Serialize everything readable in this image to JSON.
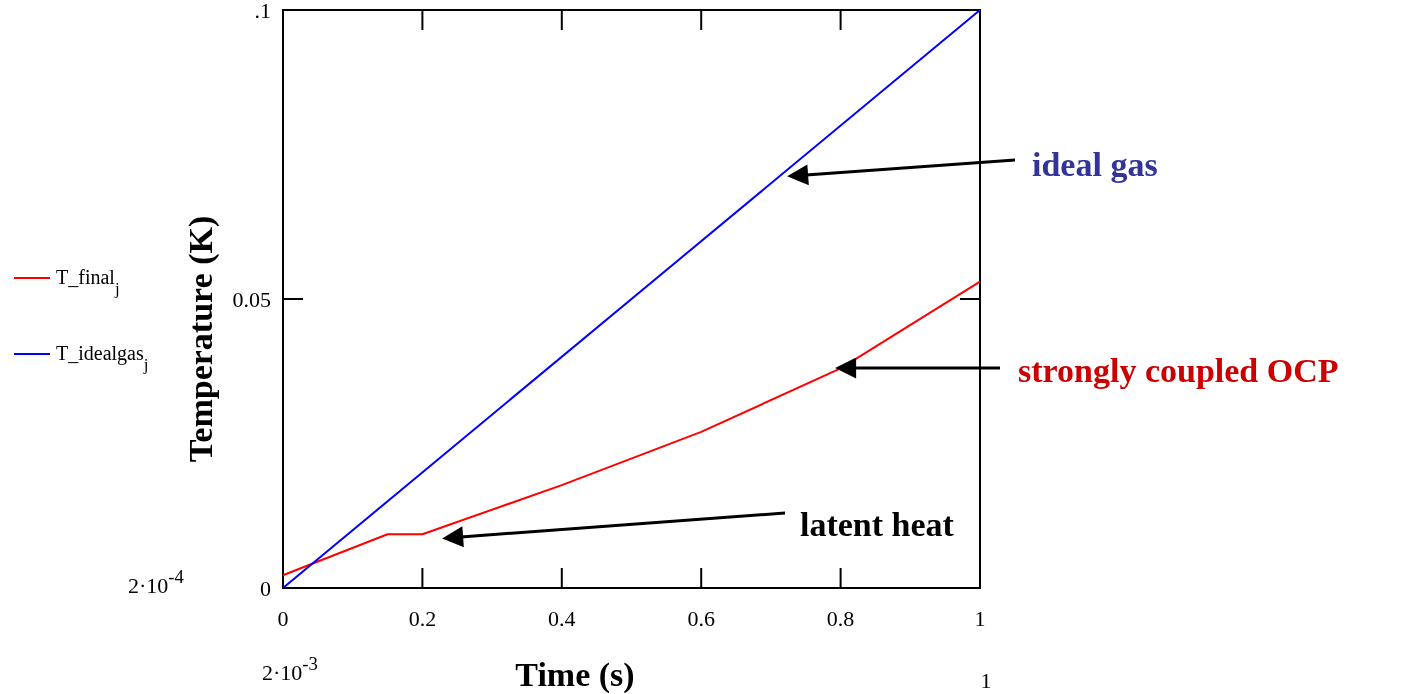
{
  "chart_data": {
    "type": "line",
    "xlabel": "Time (s)",
    "ylabel": "Temperature (K)",
    "xlim": [
      0,
      1
    ],
    "ylim": [
      0,
      0.1
    ],
    "xticks": [
      0,
      0.2,
      0.4,
      0.6,
      0.8,
      1
    ],
    "yticks": [
      0,
      {
        "value": 0.05,
        "label": "0.05"
      },
      {
        "value": 0.1,
        "label": ".1"
      }
    ],
    "legend": "left",
    "grid": false,
    "series": [
      {
        "name": "T_final$_{j}$",
        "color": "#ff0000",
        "x": [
          0,
          0.04,
          0.15,
          0.2,
          0.4,
          0.6,
          0.8,
          1
        ],
        "values": [
          0.0022,
          0.0041,
          0.0093,
          0.0093,
          0.0178,
          0.027,
          0.038,
          0.053
        ]
      },
      {
        "name": "T_idealgas$_{j}$",
        "color": "#0000ff",
        "x": [
          0,
          1
        ],
        "values": [
          0,
          0.1
        ]
      }
    ],
    "annotations": [
      "ideal gas",
      "strongly coupled OCP",
      "latent heat",
      "2·10$^{-4}$",
      "2·10$^{-3}$",
      "1"
    ]
  }
}
